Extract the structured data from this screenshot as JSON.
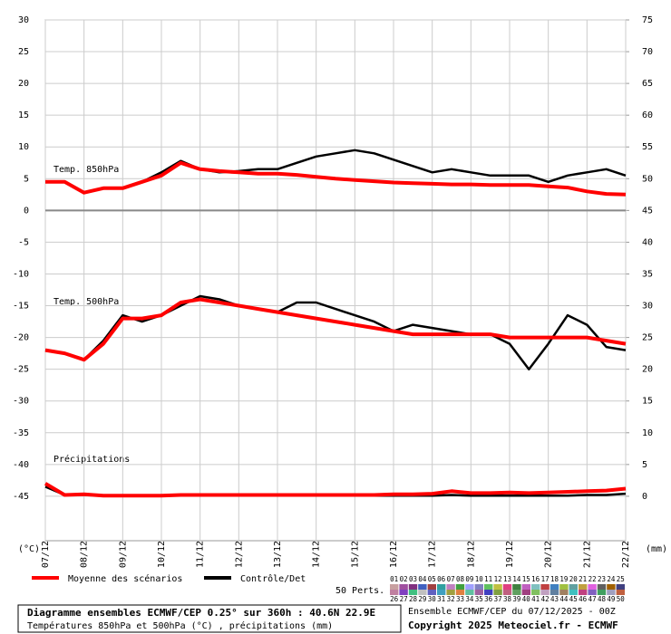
{
  "chart_data": {
    "type": "line",
    "title": "Diagramme ensembles ECMWF/CEP 0.25° sur 360h : 40.6N 22.9E",
    "subtitle": "Températures 850hPa et 500hPa (°C) , précipitations (mm)",
    "run_label": "Ensemble ECMWF/CEP du 07/12/2025 - 00Z",
    "copyright": "Copyright 2025 Meteociel.fr - ECMWF",
    "y_label": "(°C)",
    "y2_label": "(mm)",
    "grid": true,
    "x": [
      0,
      0.5,
      1,
      1.5,
      2,
      2.5,
      3,
      3.5,
      4,
      4.5,
      5,
      5.5,
      6,
      6.5,
      7,
      7.5,
      8,
      8.5,
      9,
      9.5,
      10,
      10.5,
      11,
      11.5,
      12,
      12.5,
      13,
      13.5,
      14,
      14.5,
      15
    ],
    "xlim": [
      0,
      15
    ],
    "xticks": [
      {
        "value": 0,
        "label": "07/12"
      },
      {
        "value": 1,
        "label": "08/12"
      },
      {
        "value": 2,
        "label": "09/12"
      },
      {
        "value": 3,
        "label": "10/12"
      },
      {
        "value": 4,
        "label": "11/12"
      },
      {
        "value": 5,
        "label": "12/12"
      },
      {
        "value": 6,
        "label": "13/12"
      },
      {
        "value": 7,
        "label": "14/12"
      },
      {
        "value": 8,
        "label": "15/12"
      },
      {
        "value": 9,
        "label": "16/12"
      },
      {
        "value": 10,
        "label": "17/12"
      },
      {
        "value": 11,
        "label": "18/12"
      },
      {
        "value": 12,
        "label": "19/12"
      },
      {
        "value": 13,
        "label": "20/12"
      },
      {
        "value": 14,
        "label": "21/12"
      },
      {
        "value": 15,
        "label": "22/12"
      }
    ],
    "ylim": [
      -52,
      30
    ],
    "yticks": [
      -45,
      -40,
      -35,
      -30,
      -25,
      -20,
      -15,
      -10,
      -5,
      0,
      5,
      10,
      15,
      20,
      25,
      30
    ],
    "y2lim": [
      -7,
      75
    ],
    "y2ticks": [
      0,
      5,
      10,
      15,
      20,
      25,
      30,
      35,
      40,
      45,
      50,
      55,
      60,
      65,
      70,
      75
    ],
    "legend": {
      "mean": {
        "name": "Moyenne des scénarios",
        "color": "#ff0000"
      },
      "control": {
        "name": "Contrôle/Det",
        "color": "#000000"
      }
    },
    "panels": [
      {
        "label": "Temp. 850hPa",
        "axis": "y",
        "mean": [
          4.5,
          4.5,
          2.8,
          3.5,
          3.5,
          4.5,
          5.5,
          7.5,
          6.5,
          6.2,
          6.0,
          5.8,
          5.8,
          5.6,
          5.3,
          5.0,
          4.8,
          4.6,
          4.4,
          4.3,
          4.2,
          4.1,
          4.1,
          4.0,
          4.0,
          4.0,
          3.8,
          3.6,
          3.0,
          2.6,
          2.5
        ],
        "control": [
          4.5,
          4.5,
          2.8,
          3.5,
          3.5,
          4.5,
          6,
          7.8,
          6.5,
          6.0,
          6.2,
          6.5,
          6.5,
          7.5,
          8.5,
          9,
          9.5,
          9,
          8,
          7,
          6,
          6.5,
          6.0,
          5.5,
          5.5,
          5.5,
          4.5,
          5.5,
          6,
          6.5,
          5.5
        ]
      },
      {
        "label": "Temp. 500hPa",
        "axis": "y",
        "mean": [
          -22,
          -22.5,
          -23.5,
          -21,
          -17,
          -17,
          -16.5,
          -14.5,
          -14,
          -14.5,
          -15,
          -15.5,
          -16,
          -16.5,
          -17,
          -17.5,
          -18,
          -18.5,
          -19,
          -19.5,
          -19.5,
          -19.5,
          -19.5,
          -19.5,
          -20,
          -20,
          -20,
          -20,
          -20,
          -20.5,
          -21
        ],
        "control": [
          -22,
          -22.5,
          -23.5,
          -20.5,
          -16.5,
          -17.5,
          -16.5,
          -15,
          -13.5,
          -14,
          -15,
          -15.5,
          -16,
          -14.5,
          -14.5,
          -15.5,
          -16.5,
          -17.5,
          -19,
          -18,
          -18.5,
          -19,
          -19.5,
          -19.5,
          -21,
          -25,
          -21,
          -16.5,
          -18,
          -21.5,
          -22
        ]
      },
      {
        "label": "Précipitations",
        "axis": "y2",
        "mean": [
          2,
          0.2,
          0.3,
          0.1,
          0.1,
          0.1,
          0.1,
          0.2,
          0.2,
          0.2,
          0.2,
          0.2,
          0.2,
          0.2,
          0.2,
          0.2,
          0.2,
          0.2,
          0.3,
          0.3,
          0.4,
          0.8,
          0.5,
          0.5,
          0.6,
          0.5,
          0.6,
          0.7,
          0.8,
          0.9,
          1.2
        ],
        "control": [
          1.5,
          0.2,
          0.3,
          0.1,
          0.1,
          0.1,
          0.1,
          0.1,
          0.1,
          0.1,
          0.1,
          0.1,
          0.1,
          0.1,
          0.1,
          0.1,
          0.1,
          0.1,
          0.1,
          0.1,
          0.1,
          0.2,
          0.1,
          0.1,
          0.1,
          0.1,
          0.1,
          0.1,
          0.2,
          0.2,
          0.4
        ]
      }
    ],
    "perts_label": "50 Perts.",
    "pert_labels": [
      "01",
      "02",
      "03",
      "04",
      "05",
      "06",
      "07",
      "08",
      "09",
      "10",
      "11",
      "12",
      "13",
      "14",
      "15",
      "16",
      "17",
      "18",
      "19",
      "20",
      "21",
      "22",
      "23",
      "24",
      "25",
      "26",
      "27",
      "28",
      "29",
      "30",
      "31",
      "32",
      "33",
      "34",
      "35",
      "36",
      "37",
      "38",
      "39",
      "40",
      "41",
      "42",
      "43",
      "44",
      "45",
      "46",
      "47",
      "48",
      "49",
      "50"
    ],
    "pert_colors": [
      "#c8a0a0",
      "#a050a0",
      "#803080",
      "#4060c0",
      "#a04040",
      "#30a0a0",
      "#c080c0",
      "#40a040",
      "#a0a0ff",
      "#8080c0",
      "#60c060",
      "#c0c040",
      "#e04080",
      "#408040",
      "#c060c0",
      "#80c0c0",
      "#c04040",
      "#4080c0",
      "#a0c040",
      "#60a0a0",
      "#c0a040",
      "#e060e0",
      "#606060",
      "#a06000",
      "#404080",
      "#c080a0",
      "#8040c0",
      "#40c080",
      "#c0c0c0",
      "#6060c0",
      "#40a0c0",
      "#a0a040",
      "#e08040",
      "#60c0a0",
      "#a060a0",
      "#4040c0",
      "#80a040",
      "#c06080",
      "#60a060",
      "#a04080",
      "#80c060",
      "#c0a0c0",
      "#6080a0",
      "#a08060",
      "#40c0c0",
      "#c04080",
      "#8060c0",
      "#40a060",
      "#a0a0c0",
      "#c06040"
    ]
  }
}
